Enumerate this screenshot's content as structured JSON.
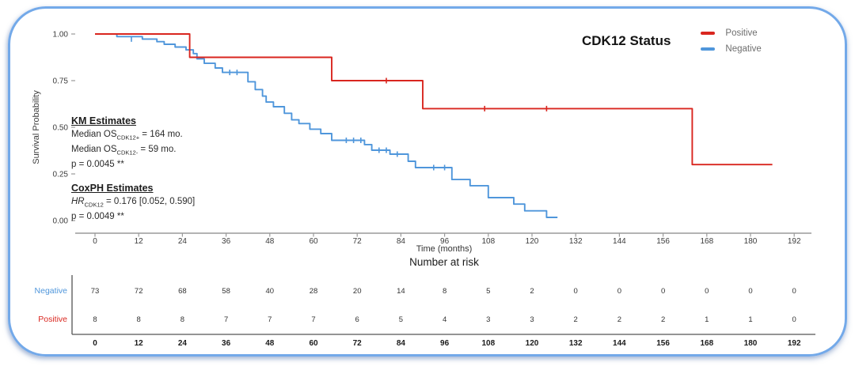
{
  "chart": {
    "y_axis_title": "Survival Probability",
    "x_axis_title": "Time (months)",
    "legend": {
      "title": "CDK12 Status",
      "items": [
        {
          "label": "Positive",
          "color": "#d9261f"
        },
        {
          "label": "Negative",
          "color": "#4f96db"
        }
      ]
    },
    "annotations": {
      "km": {
        "header": "KM Estimates",
        "line1": {
          "prefix": "Median OS",
          "sub": "CDK12+",
          "suffix": " = 164 mo."
        },
        "line2": {
          "prefix": "Median OS",
          "sub": "CDK12-",
          "suffix": " = 59 mo."
        },
        "pvalue": "p = 0.0045 **"
      },
      "coxph": {
        "header": "CoxPH Estimates",
        "line1": {
          "prefix": "HR",
          "sub": "CDK12",
          "suffix": " = 0.176 [0.052, 0.590]"
        },
        "pvalue": "p = 0.0049 **"
      }
    }
  },
  "chart_data": {
    "type": "line",
    "subtype": "kaplan-meier-step",
    "title": "CDK12 Status",
    "xlabel": "Time (months)",
    "ylabel": "Survival Probability",
    "xlim": [
      0,
      192
    ],
    "ylim": [
      0,
      1
    ],
    "grid": false,
    "legend_position": "top-right",
    "x_ticks": [
      0,
      12,
      24,
      36,
      48,
      60,
      72,
      84,
      96,
      108,
      120,
      132,
      144,
      156,
      168,
      180,
      192
    ],
    "y_ticks": [
      0,
      0.25,
      0.5,
      0.75,
      1.0
    ],
    "y_tick_labels": [
      "0.00",
      "0.25",
      "0.50",
      "0.75",
      "1.00"
    ],
    "series": [
      {
        "name": "Positive",
        "color": "#d9261f",
        "steps": [
          [
            0,
            1.0
          ],
          [
            26,
            0.875
          ],
          [
            65,
            0.75
          ],
          [
            90,
            0.6
          ],
          [
            164,
            0.3
          ]
        ],
        "end": 186,
        "censors": [
          [
            80,
            0.75
          ],
          [
            107,
            0.6
          ],
          [
            124,
            0.6
          ]
        ]
      },
      {
        "name": "Negative",
        "color": "#4f96db",
        "steps": [
          [
            0,
            1.0
          ],
          [
            6,
            0.986
          ],
          [
            13,
            0.973
          ],
          [
            17,
            0.959
          ],
          [
            19,
            0.945
          ],
          [
            22,
            0.93
          ],
          [
            25,
            0.915
          ],
          [
            27,
            0.895
          ],
          [
            28,
            0.867
          ],
          [
            30,
            0.843
          ],
          [
            33,
            0.818
          ],
          [
            35,
            0.794
          ],
          [
            42,
            0.744
          ],
          [
            44,
            0.702
          ],
          [
            46,
            0.667
          ],
          [
            47,
            0.635
          ],
          [
            49,
            0.61
          ],
          [
            52,
            0.575
          ],
          [
            54,
            0.54
          ],
          [
            56,
            0.52
          ],
          [
            59,
            0.49
          ],
          [
            62,
            0.466
          ],
          [
            65,
            0.43
          ],
          [
            74,
            0.407
          ],
          [
            76,
            0.377
          ],
          [
            81,
            0.356
          ],
          [
            86,
            0.318
          ],
          [
            88,
            0.284
          ],
          [
            98,
            0.22
          ],
          [
            103,
            0.187
          ],
          [
            108,
            0.123
          ],
          [
            115,
            0.088
          ],
          [
            118,
            0.052
          ],
          [
            124,
            0.017
          ]
        ],
        "end": 127,
        "censors": [
          [
            10,
            0.973
          ],
          [
            37,
            0.794
          ],
          [
            39,
            0.794
          ],
          [
            69,
            0.43
          ],
          [
            71,
            0.43
          ],
          [
            73,
            0.43
          ],
          [
            78,
            0.377
          ],
          [
            80,
            0.377
          ],
          [
            83,
            0.356
          ],
          [
            93,
            0.284
          ],
          [
            96,
            0.284
          ]
        ]
      }
    ]
  },
  "risk_table": {
    "title": "Number at risk",
    "time_points": [
      0,
      12,
      24,
      36,
      48,
      60,
      72,
      84,
      96,
      108,
      120,
      132,
      144,
      156,
      168,
      180,
      192
    ],
    "rows": [
      {
        "label": "Negative",
        "color": "#4f96db",
        "values": [
          73,
          72,
          68,
          58,
          40,
          28,
          20,
          14,
          8,
          5,
          2,
          0,
          0,
          0,
          0,
          0,
          0
        ]
      },
      {
        "label": "Positive",
        "color": "#d9261f",
        "values": [
          8,
          8,
          8,
          7,
          7,
          7,
          6,
          5,
          4,
          3,
          3,
          2,
          2,
          2,
          1,
          1,
          0
        ]
      }
    ]
  },
  "frame": {
    "border_color": "#73a9e9"
  }
}
